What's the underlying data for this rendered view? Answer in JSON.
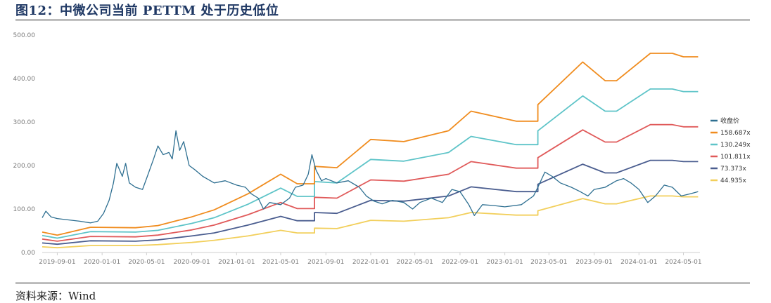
{
  "header": {
    "title": "图12：中微公司当前 PETTM 处于历史低位"
  },
  "footer": {
    "source": "资料来源：Wind"
  },
  "chart_data": {
    "type": "line",
    "title": "",
    "xlabel": "",
    "ylabel": "",
    "ylim": [
      0,
      500
    ],
    "yticks": [
      "0.00",
      "100.00",
      "200.00",
      "300.00",
      "400.00",
      "500.00"
    ],
    "xticks": [
      "2019-09-01",
      "2020-01-01",
      "2020-05-01",
      "2020-09-01",
      "2021-01-01",
      "2021-05-01",
      "2021-09-01",
      "2022-01-01",
      "2022-05-01",
      "2022-09-01",
      "2023-01-01",
      "2023-05-01",
      "2023-09-01",
      "2024-01-01",
      "2024-05-01"
    ],
    "xrange": [
      "2019-07-22",
      "2024-06-15"
    ],
    "grid": false,
    "legend_position": "right",
    "series": [
      {
        "name": "收盘价",
        "color": "#2e6f91",
        "points": [
          [
            "2019-07-22",
            80
          ],
          [
            "2019-08-01",
            95
          ],
          [
            "2019-08-15",
            82
          ],
          [
            "2019-09-01",
            78
          ],
          [
            "2019-10-01",
            75
          ],
          [
            "2019-11-01",
            72
          ],
          [
            "2019-12-01",
            68
          ],
          [
            "2019-12-20",
            72
          ],
          [
            "2020-01-05",
            90
          ],
          [
            "2020-01-20",
            120
          ],
          [
            "2020-02-01",
            160
          ],
          [
            "2020-02-10",
            205
          ],
          [
            "2020-02-25",
            175
          ],
          [
            "2020-03-05",
            205
          ],
          [
            "2020-03-15",
            160
          ],
          [
            "2020-04-01",
            150
          ],
          [
            "2020-04-20",
            145
          ],
          [
            "2020-05-01",
            170
          ],
          [
            "2020-05-20",
            215
          ],
          [
            "2020-06-01",
            245
          ],
          [
            "2020-06-15",
            225
          ],
          [
            "2020-07-01",
            230
          ],
          [
            "2020-07-10",
            215
          ],
          [
            "2020-07-20",
            280
          ],
          [
            "2020-07-30",
            235
          ],
          [
            "2020-08-10",
            255
          ],
          [
            "2020-08-25",
            200
          ],
          [
            "2020-09-10",
            190
          ],
          [
            "2020-10-01",
            175
          ],
          [
            "2020-11-01",
            160
          ],
          [
            "2020-12-01",
            165
          ],
          [
            "2021-01-01",
            155
          ],
          [
            "2021-01-25",
            150
          ],
          [
            "2021-02-10",
            135
          ],
          [
            "2021-03-01",
            125
          ],
          [
            "2021-03-15",
            100
          ],
          [
            "2021-04-01",
            115
          ],
          [
            "2021-05-01",
            110
          ],
          [
            "2021-05-25",
            125
          ],
          [
            "2021-06-10",
            150
          ],
          [
            "2021-07-01",
            155
          ],
          [
            "2021-07-15",
            180
          ],
          [
            "2021-07-25",
            225
          ],
          [
            "2021-08-05",
            190
          ],
          [
            "2021-08-20",
            165
          ],
          [
            "2021-09-01",
            170
          ],
          [
            "2021-10-01",
            160
          ],
          [
            "2021-11-01",
            165
          ],
          [
            "2021-12-01",
            150
          ],
          [
            "2021-12-20",
            130
          ],
          [
            "2022-01-10",
            118
          ],
          [
            "2022-02-01",
            112
          ],
          [
            "2022-03-01",
            120
          ],
          [
            "2022-04-01",
            115
          ],
          [
            "2022-04-25",
            100
          ],
          [
            "2022-05-15",
            115
          ],
          [
            "2022-06-15",
            125
          ],
          [
            "2022-07-15",
            115
          ],
          [
            "2022-08-10",
            145
          ],
          [
            "2022-09-01",
            140
          ],
          [
            "2022-09-25",
            110
          ],
          [
            "2022-10-10",
            85
          ],
          [
            "2022-11-01",
            110
          ],
          [
            "2022-12-01",
            108
          ],
          [
            "2023-01-01",
            105
          ],
          [
            "2023-02-15",
            110
          ],
          [
            "2023-03-20",
            130
          ],
          [
            "2023-04-01",
            150
          ],
          [
            "2023-04-20",
            185
          ],
          [
            "2023-05-10",
            175
          ],
          [
            "2023-06-01",
            160
          ],
          [
            "2023-07-01",
            150
          ],
          [
            "2023-07-25",
            140
          ],
          [
            "2023-08-15",
            130
          ],
          [
            "2023-09-01",
            145
          ],
          [
            "2023-10-01",
            150
          ],
          [
            "2023-11-01",
            165
          ],
          [
            "2023-11-20",
            170
          ],
          [
            "2023-12-10",
            160
          ],
          [
            "2024-01-01",
            145
          ],
          [
            "2024-01-25",
            115
          ],
          [
            "2024-02-15",
            130
          ],
          [
            "2024-03-10",
            155
          ],
          [
            "2024-04-01",
            150
          ],
          [
            "2024-04-25",
            130
          ],
          [
            "2024-05-20",
            135
          ],
          [
            "2024-06-10",
            140
          ]
        ]
      },
      {
        "name": "158.687x",
        "color": "#f08c1e",
        "points": [
          [
            "2019-07-22",
            47
          ],
          [
            "2019-09-01",
            40
          ],
          [
            "2019-12-01",
            58
          ],
          [
            "2020-04-01",
            57
          ],
          [
            "2020-06-01",
            62
          ],
          [
            "2020-09-01",
            82
          ],
          [
            "2020-11-01",
            98
          ],
          [
            "2021-02-01",
            135
          ],
          [
            "2021-05-01",
            180
          ],
          [
            "2021-06-15",
            158
          ],
          [
            "2021-08-01",
            158
          ],
          [
            "2021-08-01",
            198
          ],
          [
            "2021-10-01",
            195
          ],
          [
            "2022-01-01",
            260
          ],
          [
            "2022-04-01",
            255
          ],
          [
            "2022-08-01",
            280
          ],
          [
            "2022-10-01",
            325
          ],
          [
            "2023-02-01",
            302
          ],
          [
            "2023-04-01",
            302
          ],
          [
            "2023-04-01",
            340
          ],
          [
            "2023-08-01",
            438
          ],
          [
            "2023-10-01",
            395
          ],
          [
            "2023-11-01",
            395
          ],
          [
            "2024-02-01",
            458
          ],
          [
            "2024-04-01",
            458
          ],
          [
            "2024-05-01",
            450
          ],
          [
            "2024-06-10",
            450
          ]
        ]
      },
      {
        "name": "130.249x",
        "color": "#5ec4c8",
        "points": [
          [
            "2019-07-22",
            39
          ],
          [
            "2019-09-01",
            33
          ],
          [
            "2019-12-01",
            48
          ],
          [
            "2020-04-01",
            47
          ],
          [
            "2020-06-01",
            51
          ],
          [
            "2020-09-01",
            67
          ],
          [
            "2020-11-01",
            80
          ],
          [
            "2021-02-01",
            111
          ],
          [
            "2021-05-01",
            148
          ],
          [
            "2021-06-15",
            129
          ],
          [
            "2021-08-01",
            129
          ],
          [
            "2021-08-01",
            163
          ],
          [
            "2021-10-01",
            160
          ],
          [
            "2022-01-01",
            214
          ],
          [
            "2022-04-01",
            210
          ],
          [
            "2022-08-01",
            230
          ],
          [
            "2022-10-01",
            267
          ],
          [
            "2023-02-01",
            248
          ],
          [
            "2023-04-01",
            248
          ],
          [
            "2023-04-01",
            280
          ],
          [
            "2023-08-01",
            360
          ],
          [
            "2023-10-01",
            325
          ],
          [
            "2023-11-01",
            325
          ],
          [
            "2024-02-01",
            376
          ],
          [
            "2024-04-01",
            376
          ],
          [
            "2024-05-01",
            370
          ],
          [
            "2024-06-10",
            370
          ]
        ]
      },
      {
        "name": "101.811x",
        "color": "#e05a5a",
        "points": [
          [
            "2019-07-22",
            31
          ],
          [
            "2019-09-01",
            26
          ],
          [
            "2019-12-01",
            37
          ],
          [
            "2020-04-01",
            36
          ],
          [
            "2020-06-01",
            40
          ],
          [
            "2020-09-01",
            52
          ],
          [
            "2020-11-01",
            63
          ],
          [
            "2021-02-01",
            87
          ],
          [
            "2021-05-01",
            115
          ],
          [
            "2021-06-15",
            101
          ],
          [
            "2021-08-01",
            101
          ],
          [
            "2021-08-01",
            127
          ],
          [
            "2021-10-01",
            125
          ],
          [
            "2022-01-01",
            167
          ],
          [
            "2022-04-01",
            164
          ],
          [
            "2022-08-01",
            180
          ],
          [
            "2022-10-01",
            209
          ],
          [
            "2023-02-01",
            194
          ],
          [
            "2023-04-01",
            194
          ],
          [
            "2023-04-01",
            218
          ],
          [
            "2023-08-01",
            282
          ],
          [
            "2023-10-01",
            254
          ],
          [
            "2023-11-01",
            254
          ],
          [
            "2024-02-01",
            294
          ],
          [
            "2024-04-01",
            294
          ],
          [
            "2024-05-01",
            289
          ],
          [
            "2024-06-10",
            289
          ]
        ]
      },
      {
        "name": "73.373x",
        "color": "#4a5d8f",
        "points": [
          [
            "2019-07-22",
            22
          ],
          [
            "2019-09-01",
            19
          ],
          [
            "2019-12-01",
            27
          ],
          [
            "2020-04-01",
            26
          ],
          [
            "2020-06-01",
            29
          ],
          [
            "2020-09-01",
            38
          ],
          [
            "2020-11-01",
            45
          ],
          [
            "2021-02-01",
            63
          ],
          [
            "2021-05-01",
            83
          ],
          [
            "2021-06-15",
            73
          ],
          [
            "2021-08-01",
            73
          ],
          [
            "2021-08-01",
            92
          ],
          [
            "2021-10-01",
            90
          ],
          [
            "2022-01-01",
            120
          ],
          [
            "2022-04-01",
            118
          ],
          [
            "2022-08-01",
            130
          ],
          [
            "2022-10-01",
            151
          ],
          [
            "2023-02-01",
            140
          ],
          [
            "2023-04-01",
            140
          ],
          [
            "2023-04-01",
            157
          ],
          [
            "2023-08-01",
            203
          ],
          [
            "2023-10-01",
            183
          ],
          [
            "2023-11-01",
            183
          ],
          [
            "2024-02-01",
            212
          ],
          [
            "2024-04-01",
            212
          ],
          [
            "2024-05-01",
            209
          ],
          [
            "2024-06-10",
            209
          ]
        ]
      },
      {
        "name": "44.935x",
        "color": "#f2cf5b",
        "points": [
          [
            "2019-07-22",
            13
          ],
          [
            "2019-09-01",
            11
          ],
          [
            "2019-12-01",
            16
          ],
          [
            "2020-04-01",
            16
          ],
          [
            "2020-06-01",
            18
          ],
          [
            "2020-09-01",
            23
          ],
          [
            "2020-11-01",
            28
          ],
          [
            "2021-02-01",
            38
          ],
          [
            "2021-05-01",
            51
          ],
          [
            "2021-06-15",
            45
          ],
          [
            "2021-08-01",
            45
          ],
          [
            "2021-08-01",
            56
          ],
          [
            "2021-10-01",
            55
          ],
          [
            "2022-01-01",
            74
          ],
          [
            "2022-04-01",
            72
          ],
          [
            "2022-08-01",
            80
          ],
          [
            "2022-10-01",
            92
          ],
          [
            "2023-02-01",
            86
          ],
          [
            "2023-04-01",
            86
          ],
          [
            "2023-04-01",
            96
          ],
          [
            "2023-08-01",
            124
          ],
          [
            "2023-10-01",
            112
          ],
          [
            "2023-11-01",
            112
          ],
          [
            "2024-02-01",
            130
          ],
          [
            "2024-04-01",
            130
          ],
          [
            "2024-05-01",
            128
          ],
          [
            "2024-06-10",
            128
          ]
        ]
      }
    ]
  }
}
